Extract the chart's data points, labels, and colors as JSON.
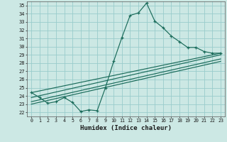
{
  "title": "",
  "xlabel": "Humidex (Indice chaleur)",
  "ylabel": "",
  "bg_color": "#cce8e4",
  "grid_color": "#99cccc",
  "line_color": "#1a6b5a",
  "xlim": [
    -0.5,
    23.5
  ],
  "ylim": [
    21.5,
    35.5
  ],
  "yticks": [
    22,
    23,
    24,
    25,
    26,
    27,
    28,
    29,
    30,
    31,
    32,
    33,
    34,
    35
  ],
  "xticks": [
    0,
    1,
    2,
    3,
    4,
    5,
    6,
    7,
    8,
    9,
    10,
    11,
    12,
    13,
    14,
    15,
    16,
    17,
    18,
    19,
    20,
    21,
    22,
    23
  ],
  "main_x": [
    0,
    1,
    2,
    3,
    4,
    5,
    6,
    7,
    8,
    9,
    10,
    11,
    12,
    13,
    14,
    15,
    16,
    17,
    18,
    19,
    20,
    21,
    22,
    23
  ],
  "main_y": [
    24.4,
    23.8,
    23.1,
    23.3,
    23.8,
    23.2,
    22.1,
    22.3,
    22.2,
    25.0,
    28.2,
    31.1,
    33.8,
    34.1,
    35.3,
    33.1,
    32.3,
    31.3,
    30.6,
    29.9,
    29.9,
    29.4,
    29.2,
    29.2
  ],
  "trend_lines": [
    {
      "x0": 0,
      "y0": 24.4,
      "x1": 23,
      "y1": 29.2
    },
    {
      "x0": 0,
      "y0": 23.8,
      "x1": 23,
      "y1": 29.0
    },
    {
      "x0": 0,
      "y0": 23.3,
      "x1": 23,
      "y1": 28.5
    },
    {
      "x0": 0,
      "y0": 23.0,
      "x1": 23,
      "y1": 28.2
    }
  ]
}
